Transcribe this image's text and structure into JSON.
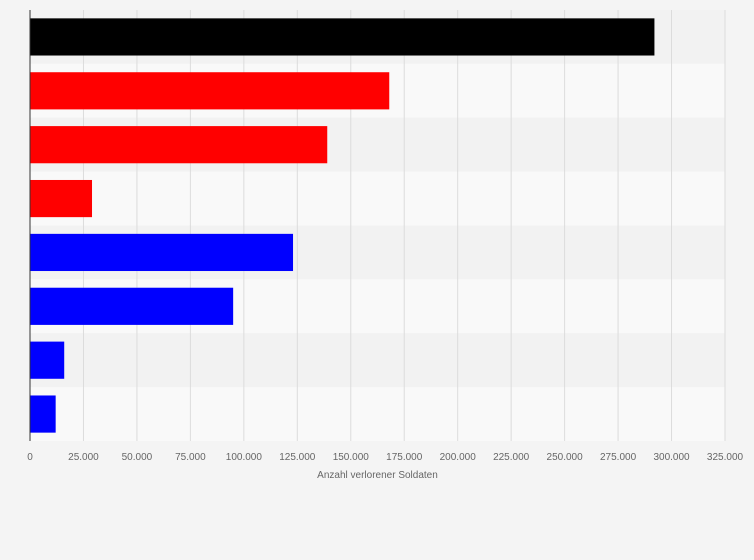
{
  "chart_data": {
    "type": "bar",
    "orientation": "horizontal",
    "title": "",
    "xlabel": "Anzahl verlorener Soldaten",
    "ylabel": "",
    "xlim": [
      0,
      325000
    ],
    "xticks": [
      0,
      25000,
      50000,
      75000,
      100000,
      125000,
      150000,
      175000,
      200000,
      225000,
      250000,
      275000,
      300000,
      325000
    ],
    "xtick_labels": [
      "0",
      "25.000",
      "50.000",
      "75.000",
      "100.000",
      "125.000",
      "150.000",
      "175.000",
      "200.000",
      "225.000",
      "250.000",
      "275.000",
      "300.000",
      "325.000"
    ],
    "grid": true,
    "categories": [
      "",
      "",
      "",
      "",
      "",
      "",
      "",
      ""
    ],
    "values": [
      292000,
      168000,
      139000,
      29000,
      123000,
      95000,
      16000,
      12000
    ],
    "colors": [
      "#000000",
      "#ff0000",
      "#ff0000",
      "#ff0000",
      "#0000ff",
      "#0000ff",
      "#0000ff",
      "#0000ff"
    ]
  }
}
